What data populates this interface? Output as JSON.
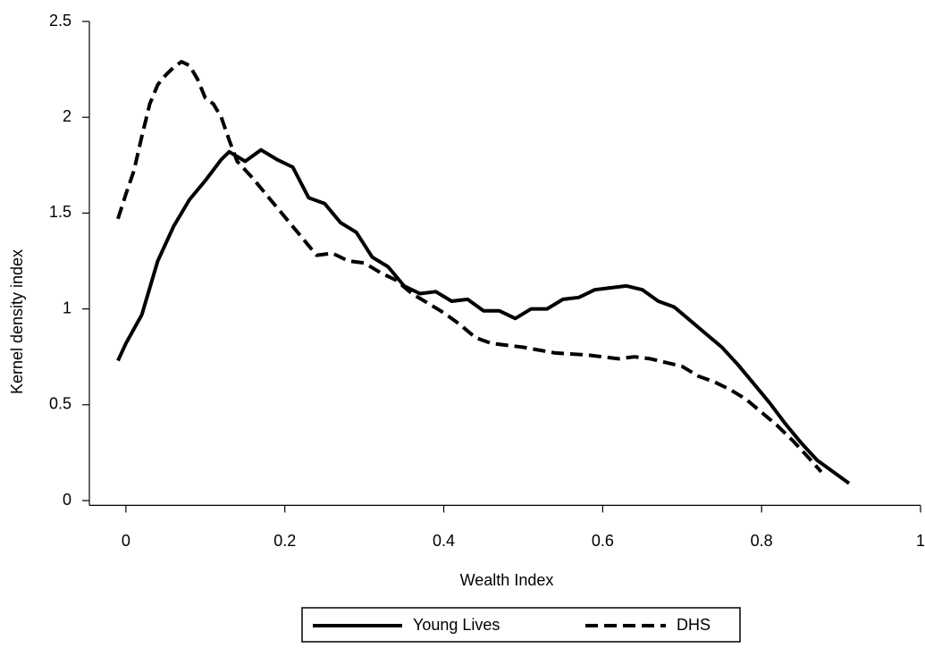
{
  "chart_data": {
    "type": "line",
    "xlabel": "Wealth Index",
    "ylabel": "Kernel density index",
    "xlim": [
      -0.046,
      1
    ],
    "xticks": [
      0,
      0.2,
      0.4,
      0.6,
      0.8,
      1
    ],
    "ylim": [
      -0.025,
      2.5
    ],
    "yticks": [
      0,
      0.5,
      1,
      1.5,
      2,
      2.5
    ],
    "grid": false,
    "legend": "bottom",
    "series": [
      {
        "name": "Young Lives",
        "color": "#000000",
        "line_style": "solid",
        "x": [
          -0.01,
          0.0,
          0.02,
          0.04,
          0.06,
          0.08,
          0.1,
          0.12,
          0.13,
          0.15,
          0.17,
          0.19,
          0.21,
          0.23,
          0.25,
          0.27,
          0.29,
          0.31,
          0.33,
          0.35,
          0.37,
          0.39,
          0.41,
          0.43,
          0.45,
          0.47,
          0.49,
          0.51,
          0.53,
          0.55,
          0.57,
          0.59,
          0.61,
          0.63,
          0.65,
          0.67,
          0.69,
          0.71,
          0.73,
          0.75,
          0.77,
          0.79,
          0.81,
          0.83,
          0.85,
          0.87,
          0.89,
          0.91
        ],
        "values": [
          0.73,
          0.82,
          0.97,
          1.25,
          1.43,
          1.57,
          1.67,
          1.78,
          1.82,
          1.77,
          1.83,
          1.78,
          1.74,
          1.58,
          1.55,
          1.45,
          1.4,
          1.27,
          1.22,
          1.12,
          1.08,
          1.09,
          1.04,
          1.05,
          0.99,
          0.99,
          0.95,
          1.0,
          1.0,
          1.05,
          1.06,
          1.1,
          1.11,
          1.12,
          1.1,
          1.04,
          1.01,
          0.94,
          0.87,
          0.8,
          0.71,
          0.61,
          0.51,
          0.4,
          0.3,
          0.21,
          0.15,
          0.09
        ]
      },
      {
        "name": "DHS",
        "color": "#000000",
        "line_style": "dashed",
        "x": [
          -0.01,
          0.0,
          0.01,
          0.02,
          0.03,
          0.04,
          0.05,
          0.06,
          0.07,
          0.08,
          0.09,
          0.1,
          0.11,
          0.12,
          0.13,
          0.14,
          0.16,
          0.18,
          0.2,
          0.22,
          0.24,
          0.26,
          0.28,
          0.3,
          0.32,
          0.34,
          0.36,
          0.38,
          0.4,
          0.42,
          0.44,
          0.46,
          0.5,
          0.54,
          0.58,
          0.62,
          0.64,
          0.66,
          0.68,
          0.7,
          0.72,
          0.74,
          0.76,
          0.78,
          0.8,
          0.82,
          0.84,
          0.86,
          0.875
        ],
        "values": [
          1.47,
          1.6,
          1.72,
          1.9,
          2.07,
          2.17,
          2.22,
          2.26,
          2.29,
          2.27,
          2.2,
          2.1,
          2.07,
          2.0,
          1.88,
          1.77,
          1.68,
          1.58,
          1.48,
          1.38,
          1.28,
          1.29,
          1.25,
          1.24,
          1.19,
          1.15,
          1.08,
          1.03,
          0.98,
          0.92,
          0.85,
          0.82,
          0.8,
          0.77,
          0.76,
          0.74,
          0.75,
          0.74,
          0.72,
          0.7,
          0.65,
          0.62,
          0.58,
          0.53,
          0.46,
          0.39,
          0.31,
          0.22,
          0.15
        ]
      }
    ]
  }
}
